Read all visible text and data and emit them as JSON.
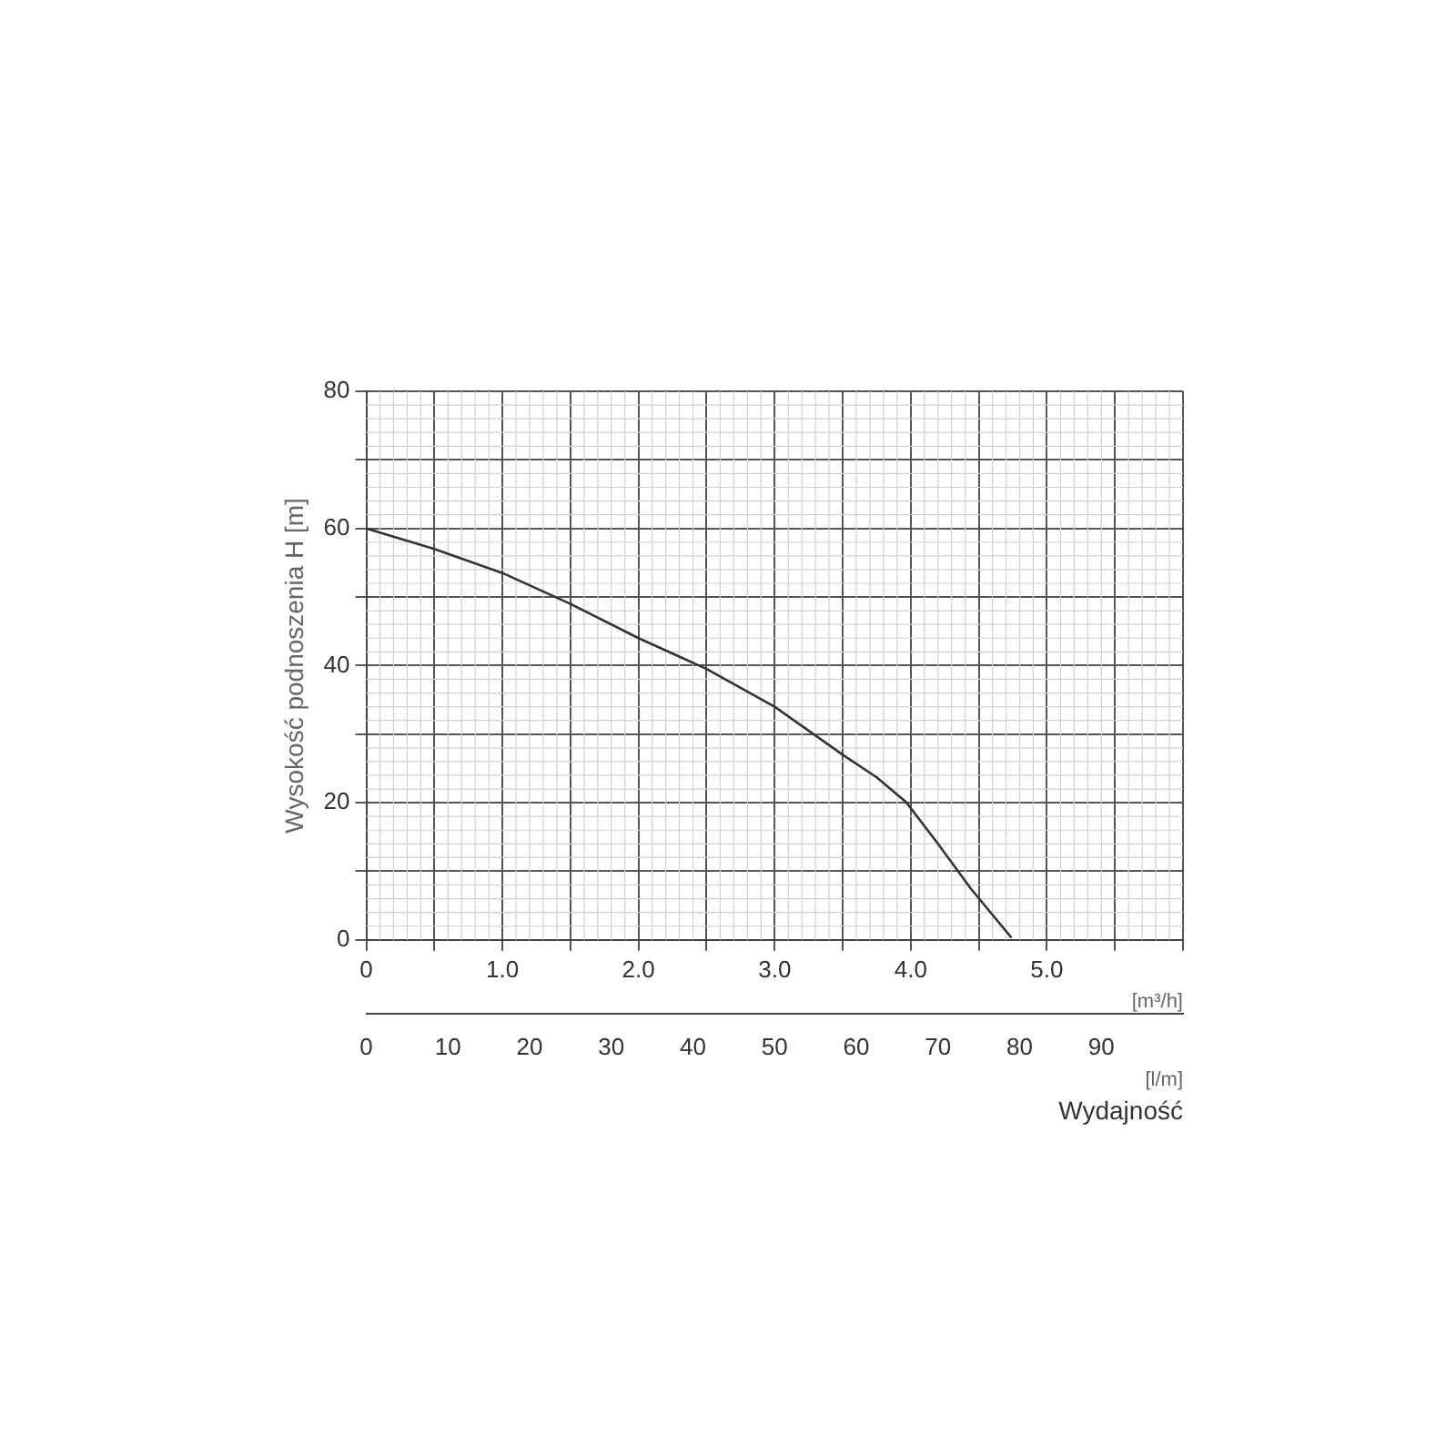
{
  "chart_data": {
    "type": "line",
    "xlabel": "[m³/h]",
    "ylabel": "Wysokość podnoszenia H [m]",
    "x2label": "[l/m]",
    "annotations": [
      "Wydajność"
    ],
    "series": [
      {
        "color": "#333333",
        "x": [
          0,
          0.5,
          1.0,
          1.5,
          2.0,
          2.5,
          3.0,
          3.5,
          3.75,
          3.97,
          4.2,
          4.44,
          4.74
        ],
        "values": [
          60,
          57,
          53.5,
          49,
          44,
          39.5,
          34,
          27,
          23.7,
          20,
          14,
          7.5,
          0.3
        ]
      }
    ],
    "xlim": [
      0,
      6
    ],
    "xticks": [
      0,
      {
        "value": 0.5,
        "label": null
      },
      {
        "value": 1,
        "label": "1.0"
      },
      {
        "value": 1.5,
        "label": null
      },
      {
        "value": 2,
        "label": "2.0"
      },
      {
        "value": 2.5,
        "label": null
      },
      {
        "value": 3,
        "label": "3.0"
      },
      {
        "value": 3.5,
        "label": null
      },
      {
        "value": 4,
        "label": "4.0"
      },
      {
        "value": 4.5,
        "label": null
      },
      {
        "value": 5,
        "label": "5.0"
      },
      {
        "value": 5.5,
        "label": null
      },
      {
        "value": 6,
        "label": null
      }
    ],
    "x2lim": [
      0,
      100
    ],
    "x2ticks": [
      0,
      10,
      20,
      30,
      40,
      50,
      60,
      70,
      80,
      90
    ],
    "ylim": [
      0,
      80
    ],
    "yticks": [
      0,
      {
        "value": 10,
        "label": null
      },
      20,
      {
        "value": 30,
        "label": null
      },
      40,
      {
        "value": 50,
        "label": null
      },
      60,
      {
        "value": 70,
        "label": null
      },
      80
    ],
    "grid": true,
    "legend": false,
    "marker": "none",
    "line_style": "solid"
  }
}
